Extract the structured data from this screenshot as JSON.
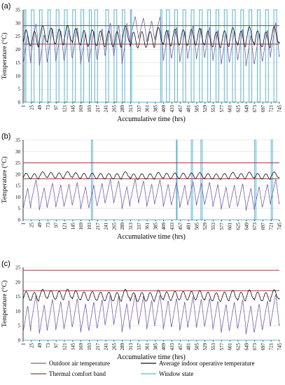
{
  "legend": [
    {
      "name": "Outdoor air temperature",
      "color": "#7b5fa6"
    },
    {
      "name": "Average indoor operative temperature",
      "color": "#111111"
    },
    {
      "name": "Thermal comfort band",
      "color": "#9b3b3b"
    },
    {
      "name": "Window state",
      "color": "#5fb3cf"
    }
  ],
  "colors": {
    "outdoor": "#7b5fa6",
    "indoor": "#111111",
    "band": "#9b3b3b",
    "window": "#5fb3cf"
  },
  "chart_data": [
    {
      "type": "line",
      "panel_label": "(a)",
      "xlabel": "Accumulative time (hrs)",
      "ylabel": "Temperature (°C)",
      "ylim": [
        0,
        35
      ],
      "yticks": [
        0,
        5,
        10,
        15,
        20,
        25,
        30,
        35
      ],
      "xlim": [
        1,
        745
      ],
      "xticks": [
        1,
        25,
        49,
        73,
        97,
        121,
        145,
        169,
        193,
        217,
        241,
        265,
        289,
        313,
        337,
        361,
        385,
        409,
        433,
        457,
        481,
        505,
        529,
        553,
        577,
        601,
        625,
        649,
        673,
        697,
        721,
        745
      ],
      "band": [
        22,
        29
      ],
      "outdoor": {
        "base": 22,
        "amp": 6,
        "mid": {
          "from": 300,
          "to": 400,
          "base": 27,
          "amp": 4
        },
        "drop_days": []
      },
      "indoor": {
        "base": 25,
        "amp": 3
      },
      "window_open_ranges": [
        [
          5,
          9
        ],
        [
          25,
          33
        ],
        [
          49,
          56
        ],
        [
          73,
          80
        ],
        [
          97,
          105
        ],
        [
          121,
          129
        ],
        [
          145,
          153
        ],
        [
          169,
          177
        ],
        [
          193,
          199
        ],
        [
          209,
          217
        ],
        [
          241,
          249
        ],
        [
          265,
          273
        ],
        [
          289,
          296
        ],
        [
          313,
          316
        ],
        [
          400,
          404
        ],
        [
          417,
          426
        ],
        [
          441,
          449
        ],
        [
          465,
          473
        ],
        [
          489,
          497
        ],
        [
          513,
          521
        ],
        [
          537,
          545
        ],
        [
          561,
          569
        ],
        [
          585,
          593
        ],
        [
          609,
          617
        ],
        [
          633,
          641
        ],
        [
          657,
          665
        ],
        [
          681,
          689
        ],
        [
          705,
          713
        ],
        [
          729,
          737
        ]
      ]
    },
    {
      "type": "line",
      "panel_label": "(b)",
      "xlabel": "Accumulative time (hrs)",
      "ylabel": "Temperature (°C)",
      "ylim": [
        0,
        35
      ],
      "yticks": [
        0,
        5,
        10,
        15,
        20,
        25,
        30,
        35
      ],
      "xlim": [
        1,
        745
      ],
      "xticks": [
        1,
        25,
        49,
        73,
        97,
        121,
        145,
        169,
        193,
        217,
        241,
        265,
        289,
        313,
        337,
        361,
        385,
        409,
        433,
        457,
        481,
        505,
        529,
        553,
        577,
        601,
        625,
        649,
        673,
        697,
        721,
        745
      ],
      "band": [
        18,
        25
      ],
      "outdoor": {
        "base": 11,
        "amp": 5,
        "mid": null,
        "drop_days": []
      },
      "indoor": {
        "base": 19.5,
        "amp": 1.2
      },
      "window_open_ranges": [
        [
          199,
          203
        ],
        [
          446,
          448
        ],
        [
          489,
          493
        ],
        [
          517,
          521
        ],
        [
          673,
          677
        ],
        [
          721,
          725
        ]
      ]
    },
    {
      "type": "line",
      "panel_label": "(c)",
      "xlabel": "Accumulative time (hrs)",
      "ylabel": "Temperature (°C)",
      "ylim": [
        0,
        25
      ],
      "yticks": [
        0,
        5,
        10,
        15,
        20,
        25
      ],
      "xlim": [
        1,
        745
      ],
      "xticks": [
        1,
        25,
        49,
        73,
        97,
        121,
        145,
        169,
        193,
        217,
        241,
        265,
        289,
        313,
        337,
        361,
        385,
        409,
        433,
        457,
        481,
        505,
        529,
        553,
        577,
        601,
        625,
        649,
        673,
        697,
        721,
        745
      ],
      "band": [
        17,
        24
      ],
      "outdoor": {
        "base": 9,
        "amp": 5,
        "mid": null,
        "drop_days": []
      },
      "indoor": {
        "base": 15.5,
        "amp": 1.5
      },
      "window_open_ranges": []
    }
  ]
}
